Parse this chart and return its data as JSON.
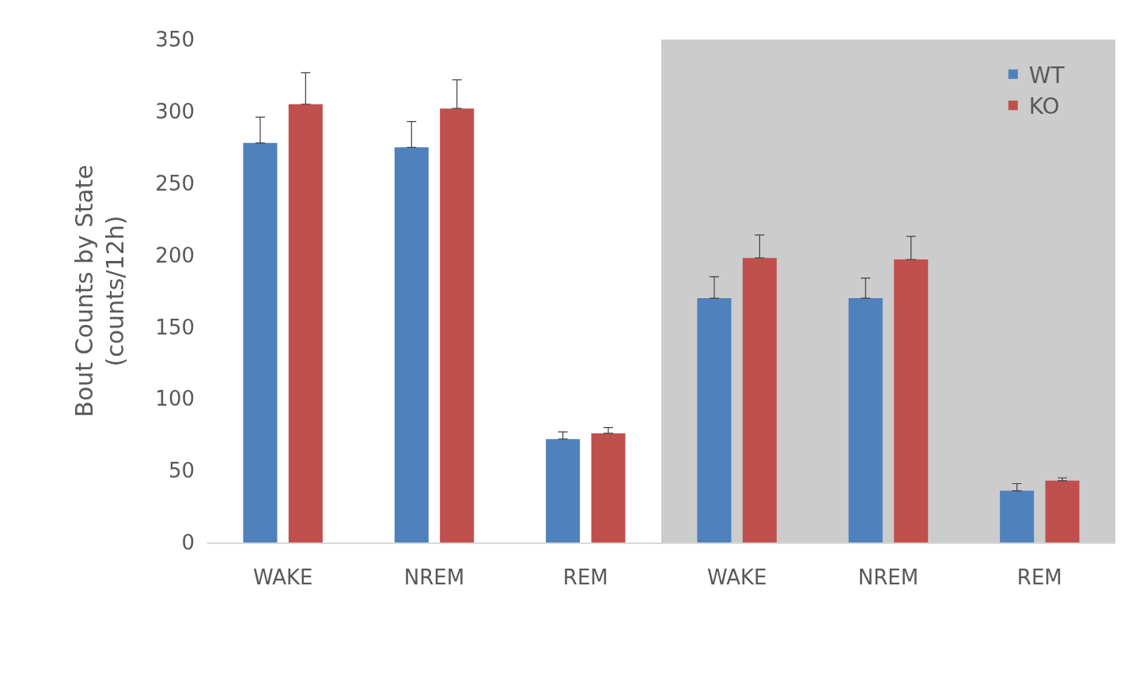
{
  "chart_data": {
    "type": "bar",
    "ylabel": "Bout Counts by State\n(counts/12h)",
    "categories": [
      "WAKE",
      "NREM",
      "REM",
      "WAKE",
      "NREM",
      "REM"
    ],
    "series": [
      {
        "name": "WT",
        "color": "#4f81bd",
        "values": [
          278,
          275,
          72,
          170,
          170,
          36
        ],
        "errors": [
          [
            278,
            296
          ],
          [
            275,
            293
          ],
          [
            72,
            77
          ],
          [
            170,
            185
          ],
          [
            170,
            184
          ],
          [
            36,
            41
          ]
        ]
      },
      {
        "name": "KO",
        "color": "#c0504d",
        "values": [
          305,
          302,
          76,
          198,
          197,
          43
        ],
        "errors": [
          [
            305,
            327
          ],
          [
            302,
            322
          ],
          [
            76,
            80
          ],
          [
            198,
            214
          ],
          [
            197,
            213
          ],
          [
            43,
            45
          ]
        ]
      }
    ],
    "ylim": [
      0,
      350
    ],
    "yticks": [
      0,
      50,
      100,
      150,
      200,
      250,
      300,
      350
    ],
    "grid": false,
    "legend": "top right"
  }
}
